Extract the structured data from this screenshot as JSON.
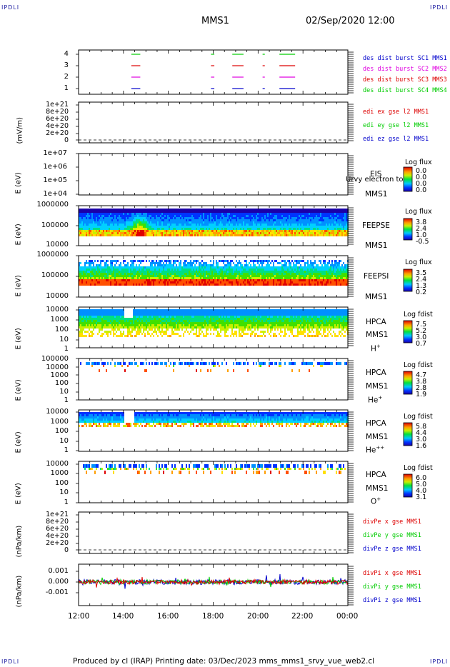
{
  "corner_label": "IPDLI",
  "header": {
    "title": "MMS1",
    "date": "02/Sep/2020 12:00"
  },
  "footer": "Produced by cl (IRAP)   Printing date: 03/Dec/2023   mms_mms1_srvy_vue_web2.cl",
  "x_ticks": [
    "12:00",
    "14:00",
    "16:00",
    "18:00",
    "20:00",
    "22:00",
    "00:00"
  ],
  "panels": {
    "burst": {
      "y_ticks": [
        "4",
        "3",
        "2",
        "1"
      ],
      "legend": [
        "des dist burst SC1 MMS1",
        "des dist burst SC2 MMS2",
        "des dist burst SC3 MMS3",
        "des dist burst SC4 MMS4"
      ],
      "colors": [
        "#0000cc",
        "#e000e0",
        "#dd0000",
        "#00cc00"
      ]
    },
    "edi": {
      "ylabel": "(mV/m)",
      "y_ticks": [
        "1e+21",
        "8e+20",
        "6e+20",
        "4e+20",
        "2e+20",
        "0"
      ],
      "legend": [
        "edi ex gse l2 MMS1",
        "edi ey gse l2 MMS1",
        "edi ez gse l2 MMS1"
      ],
      "colors": [
        "#dd0000",
        "#00cc00",
        "#0000cc"
      ]
    },
    "eis": {
      "ylabel": "E (eV)",
      "y_ticks": [
        "1e+07",
        "1e+06",
        "1e+05",
        "1e+04"
      ],
      "side": [
        "EIS",
        "MMS1"
      ],
      "overlay": "Urvy electron to",
      "cb_title": "Log flux",
      "cb_vals": [
        "0.0",
        "0.0",
        "0.0",
        "0.0"
      ]
    },
    "feepse": {
      "ylabel": "E (eV)",
      "y_ticks": [
        "1000000",
        "100000",
        "10000"
      ],
      "side": [
        "FEEPSE",
        "MMS1"
      ],
      "cb_title": "Log flux",
      "cb_vals": [
        "3.8",
        "2.4",
        "1.0",
        "-0.5"
      ]
    },
    "feepsi": {
      "ylabel": "E (eV)",
      "y_ticks": [
        "1000000",
        "100000",
        "10000"
      ],
      "side": [
        "FEEPSI",
        "MMS1"
      ],
      "cb_title": "Log flux",
      "cb_vals": [
        "3.5",
        "2.4",
        "1.3",
        "0.2"
      ]
    },
    "hpca_h": {
      "ylabel": "E (eV)",
      "y_ticks": [
        "10000",
        "1000",
        "100",
        "10",
        "1"
      ],
      "side": [
        "HPCA",
        "MMS1"
      ],
      "species": "H",
      "sup": "+",
      "cb_title": "Log fdist",
      "cb_vals": [
        "7.5",
        "5.2",
        "3.0",
        "0.7"
      ]
    },
    "hpca_he": {
      "ylabel": "E (eV)",
      "y_ticks": [
        "100000",
        "10000",
        "1000",
        "100",
        "10",
        "1"
      ],
      "side": [
        "HPCA",
        "MMS1"
      ],
      "species": "He",
      "sup": "+",
      "cb_title": "Log fdist",
      "cb_vals": [
        "4.7",
        "3.8",
        "2.8",
        "1.9"
      ]
    },
    "hpca_hepp": {
      "ylabel": "E (eV)",
      "y_ticks": [
        "10000",
        "1000",
        "100",
        "10",
        "1"
      ],
      "side": [
        "HPCA",
        "MMS1"
      ],
      "species": "He",
      "sup": "++",
      "cb_title": "Log fdist",
      "cb_vals": [
        "5.8",
        "4.4",
        "3.0",
        "1.6"
      ]
    },
    "hpca_o": {
      "ylabel": "E (eV)",
      "y_ticks": [
        "10000",
        "1000",
        "100",
        "10",
        "1"
      ],
      "side": [
        "HPCA",
        "MMS1"
      ],
      "species": "O",
      "sup": "+",
      "cb_title": "Log fdist",
      "cb_vals": [
        "6.0",
        "5.0",
        "4.0",
        "3.1"
      ]
    },
    "divpe": {
      "ylabel": "(nPa/km)",
      "y_ticks": [
        "1e+21",
        "8e+20",
        "6e+20",
        "4e+20",
        "2e+20",
        "0"
      ],
      "legend": [
        "divPe x gse MMS1",
        "divPe y gse MMS1",
        "divPe z gse MMS1"
      ],
      "colors": [
        "#dd0000",
        "#00cc00",
        "#0000cc"
      ]
    },
    "divpi": {
      "ylabel": "(nPa/km)",
      "y_ticks": [
        "0.001",
        "0.000",
        "-0.001"
      ],
      "legend": [
        "divPi x gse MMS1",
        "divPi y gse MMS1",
        "divPi z gse MMS1"
      ],
      "colors": [
        "#dd0000",
        "#00cc00",
        "#0000cc"
      ]
    }
  },
  "chart_data": {
    "type": "line",
    "title": "MMS1",
    "x_range": [
      "02/Sep/2020 12:00",
      "03/Sep/2020 00:00"
    ],
    "series": [
      {
        "name": "des dist burst SC1 MMS1",
        "y": 1,
        "intervals_h": [
          [
            14.35,
            14.75
          ],
          [
            17.9,
            18.05
          ],
          [
            18.85,
            19.35
          ],
          [
            20.2,
            20.3
          ],
          [
            20.95,
            21.65
          ]
        ]
      },
      {
        "name": "des dist burst SC2 MMS2",
        "y": 2,
        "intervals_h": [
          [
            14.35,
            14.75
          ],
          [
            17.9,
            18.05
          ],
          [
            18.85,
            19.35
          ],
          [
            20.2,
            20.3
          ],
          [
            20.95,
            21.65
          ]
        ]
      },
      {
        "name": "des dist burst SC3 MMS3",
        "y": 3,
        "intervals_h": [
          [
            14.35,
            14.75
          ],
          [
            17.9,
            18.05
          ],
          [
            18.85,
            19.35
          ],
          [
            20.2,
            20.3
          ],
          [
            20.95,
            21.65
          ]
        ]
      },
      {
        "name": "des dist burst SC4 MMS4",
        "y": 4,
        "intervals_h": [
          [
            14.35,
            14.75
          ],
          [
            17.9,
            18.05
          ],
          [
            18.85,
            19.35
          ],
          [
            20.2,
            20.3
          ],
          [
            20.95,
            21.65
          ]
        ]
      }
    ]
  }
}
